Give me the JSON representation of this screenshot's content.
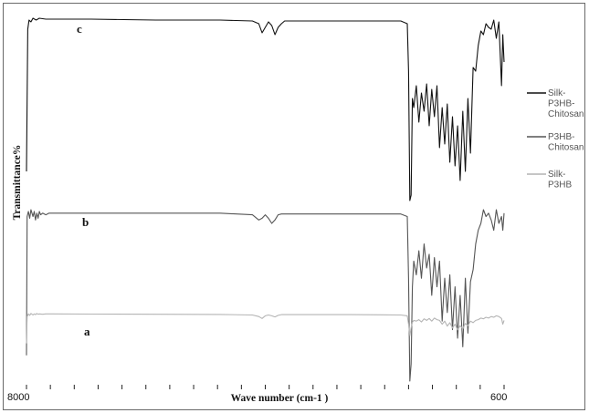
{
  "chart_data": {
    "type": "line",
    "xlabel": "Wave number (cm-1 )",
    "ylabel": "Transmittance%",
    "x_tick_labels": [
      "8000",
      "600"
    ],
    "xlim": [
      8000,
      600
    ],
    "grid": false,
    "legend_position": "right",
    "series": [
      {
        "name": "Silk-P3HB-Chitosan",
        "legend_lines": [
          "Silk-",
          "P3HB-",
          "Chitosan"
        ],
        "curve_label": "c",
        "color": "#111111",
        "x": [
          8000,
          7980,
          7960,
          7930,
          7900,
          7850,
          7800,
          7700,
          7600,
          7500,
          7000,
          6000,
          5000,
          4500,
          4400,
          4350,
          4300,
          4250,
          4200,
          4150,
          4100,
          4050,
          4000,
          3500,
          3000,
          2500,
          2200,
          2100,
          2080,
          2060,
          2040,
          2020,
          2000,
          1960,
          1920,
          1880,
          1840,
          1800,
          1760,
          1720,
          1680,
          1640,
          1600,
          1560,
          1520,
          1480,
          1440,
          1400,
          1360,
          1320,
          1280,
          1240,
          1200,
          1160,
          1120,
          1080,
          1040,
          1000,
          960,
          920,
          880,
          840,
          800,
          760,
          720,
          680,
          640,
          620,
          600
        ],
        "values": [
          15,
          93,
          98,
          97,
          99,
          98,
          99,
          98.5,
          98.5,
          98.5,
          98.5,
          98,
          98,
          97.5,
          96,
          91,
          94,
          97,
          95,
          90,
          94,
          96,
          97.5,
          97.5,
          97.5,
          97.5,
          97.5,
          96,
          70,
          -1,
          2,
          55,
          50,
          62,
          42,
          58,
          48,
          63,
          40,
          60,
          45,
          62,
          28,
          50,
          30,
          52,
          20,
          45,
          18,
          40,
          10,
          48,
          15,
          55,
          25,
          72,
          70,
          84,
          92,
          90,
          96,
          94,
          93,
          98,
          88,
          97,
          62,
          90,
          75
        ]
      },
      {
        "name": "P3HB-Chitosan",
        "legend_lines": [
          "P3HB-",
          "Chitosan"
        ],
        "curve_label": "b",
        "color": "#555555",
        "x": [
          8000,
          7990,
          7970,
          7950,
          7930,
          7900,
          7880,
          7860,
          7840,
          7820,
          7800,
          7780,
          7750,
          7700,
          7650,
          7600,
          7500,
          7000,
          6000,
          5000,
          4500,
          4400,
          4350,
          4300,
          4250,
          4200,
          4150,
          4100,
          4050,
          4000,
          3500,
          3000,
          2500,
          2200,
          2100,
          2080,
          2060,
          2040,
          2020,
          2000,
          1960,
          1920,
          1880,
          1840,
          1800,
          1760,
          1720,
          1680,
          1640,
          1600,
          1560,
          1520,
          1480,
          1440,
          1400,
          1360,
          1320,
          1280,
          1240,
          1200,
          1160,
          1120,
          1080,
          1040,
          1000,
          960,
          920,
          880,
          840,
          800,
          760,
          720,
          680,
          640,
          620,
          600
        ],
        "values": [
          15,
          96,
          99,
          95,
          100,
          96,
          99,
          94,
          98,
          95,
          99,
          97,
          98,
          97,
          98,
          98,
          98,
          98,
          98,
          98,
          97,
          94,
          95,
          97,
          95,
          92,
          94,
          97,
          97.5,
          97.5,
          97.5,
          97.5,
          97.5,
          97.5,
          96,
          60,
          0,
          10,
          55,
          70,
          62,
          76,
          60,
          80,
          66,
          74,
          50,
          72,
          55,
          70,
          35,
          60,
          40,
          62,
          30,
          55,
          25,
          50,
          20,
          60,
          28,
          58,
          65,
          80,
          88,
          92,
          100,
          96,
          98,
          94,
          88,
          100,
          92,
          96,
          88,
          98
        ]
      },
      {
        "name": "Silk-P3HB",
        "legend_lines": [
          "Silk-",
          "P3HB"
        ],
        "curve_label": "a",
        "color": "#b4b4b4",
        "x": [
          8000,
          7990,
          7970,
          7950,
          7930,
          7900,
          7880,
          7860,
          7840,
          7820,
          7800,
          7750,
          7700,
          7600,
          7000,
          6000,
          5000,
          4500,
          4400,
          4350,
          4300,
          4250,
          4200,
          4150,
          4100,
          4050,
          4000,
          3500,
          3000,
          2500,
          2200,
          2100,
          2080,
          2060,
          2040,
          2020,
          2000,
          1960,
          1920,
          1880,
          1840,
          1800,
          1760,
          1720,
          1680,
          1640,
          1600,
          1560,
          1520,
          1480,
          1440,
          1400,
          1360,
          1320,
          1280,
          1240,
          1200,
          1160,
          1120,
          1080,
          1040,
          1000,
          960,
          920,
          880,
          840,
          800,
          760,
          720,
          680,
          640,
          620,
          600
        ],
        "values": [
          20,
          90,
          97,
          93,
          98,
          94,
          97,
          95,
          98,
          96,
          97,
          96,
          97,
          97,
          96.5,
          96,
          95.5,
          94,
          90,
          85,
          92,
          94,
          92,
          89,
          93,
          95,
          95,
          95,
          95,
          94.5,
          94,
          92,
          70,
          40,
          60,
          75,
          80,
          78,
          82,
          76,
          84,
          80,
          85,
          78,
          86,
          82,
          80,
          70,
          78,
          65,
          74,
          60,
          70,
          55,
          66,
          58,
          72,
          66,
          78,
          74,
          80,
          82,
          86,
          84,
          88,
          86,
          90,
          88,
          92,
          90,
          85,
          70,
          80
        ]
      }
    ]
  }
}
